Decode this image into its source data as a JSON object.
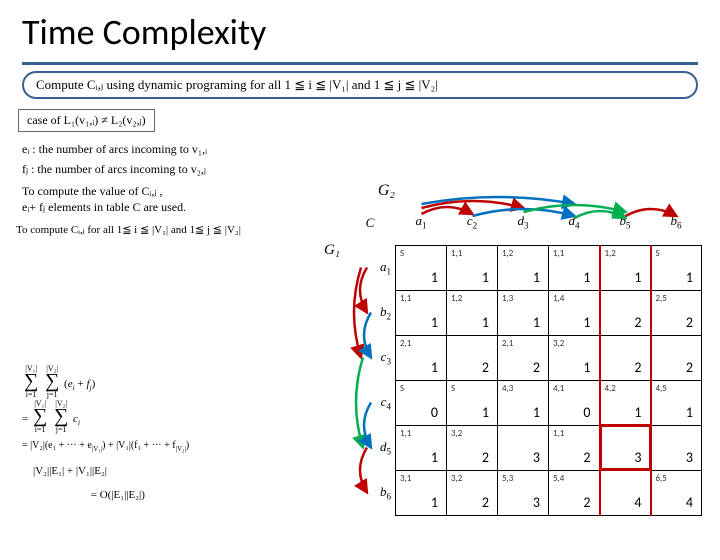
{
  "title": "Time Complexity",
  "callout": "Compute Cᵢ,ⱼ using dynamic programing for all 1 ≦ i ≦ |V₁| and 1 ≦ j ≦ |V₂|",
  "case_box": "case of L₁(v₁,ᵢ) ≠ L₂(v₂,ⱼ)",
  "def_ei": "eᵢ : the number of arcs incoming to v₁,ᵢ",
  "def_fj": "fⱼ : the number of arcs incoming to v₂,ⱼ",
  "note1_l1": "To compute the value of Cᵢ,ⱼ ,",
  "note1_l2": "eᵢ+ fⱼ elements in table C are used.",
  "note2": "To compute Cᵢ,ⱼ for all 1≦ i ≦ |V₁| and 1≦ j ≦ |V₂|",
  "final_eq": "= O(|E₁||E₂|)",
  "G2": "G₂",
  "G1": "G₁",
  "corner": "C",
  "cols": [
    {
      "label": "a",
      "idx": "1"
    },
    {
      "label": "c",
      "idx": "2"
    },
    {
      "label": "d",
      "idx": "3"
    },
    {
      "label": "d",
      "idx": "4"
    },
    {
      "label": "b",
      "idx": "5"
    },
    {
      "label": "b",
      "idx": "6"
    }
  ],
  "rows": [
    {
      "label": "a",
      "idx": "1"
    },
    {
      "label": "b",
      "idx": "2"
    },
    {
      "label": "c",
      "idx": "3"
    },
    {
      "label": "c",
      "idx": "4"
    },
    {
      "label": "d",
      "idx": "5"
    },
    {
      "label": "b",
      "idx": "6"
    }
  ],
  "cells": [
    [
      {
        "t": "S",
        "v": "1"
      },
      {
        "t": "1,1",
        "v": "1"
      },
      {
        "t": "1,2",
        "v": "1"
      },
      {
        "t": "1,1",
        "v": "1"
      },
      {
        "t": "1,2",
        "v": "1"
      },
      {
        "t": "S",
        "v": "1"
      }
    ],
    [
      {
        "t": "1,1",
        "v": "1"
      },
      {
        "t": "1,2",
        "v": "1"
      },
      {
        "t": "1,3",
        "v": "1"
      },
      {
        "t": "1,4",
        "v": "1"
      },
      {
        "t": "",
        "v": "2"
      },
      {
        "t": "2,5",
        "v": "2"
      }
    ],
    [
      {
        "t": "2,1",
        "v": "1"
      },
      {
        "t": "",
        "v": "2"
      },
      {
        "t": "2,1",
        "v": "2"
      },
      {
        "t": "3,2",
        "v": "1"
      },
      {
        "t": "",
        "v": "2"
      },
      {
        "t": "",
        "v": "2"
      }
    ],
    [
      {
        "t": "S",
        "v": "0"
      },
      {
        "t": "S",
        "v": "1"
      },
      {
        "t": "4,3",
        "v": "1"
      },
      {
        "t": "4,1",
        "v": "0"
      },
      {
        "t": "4,2",
        "v": "1"
      },
      {
        "t": "4,5",
        "v": "1"
      }
    ],
    [
      {
        "t": "1,1",
        "v": "1"
      },
      {
        "t": "3,2",
        "v": "2"
      },
      {
        "t": "",
        "v": "3"
      },
      {
        "t": "1,1",
        "v": "2"
      },
      {
        "t": "",
        "v": "3"
      },
      {
        "t": "",
        "v": "3"
      }
    ],
    [
      {
        "t": "3,1",
        "v": "1"
      },
      {
        "t": "3,2",
        "v": "2"
      },
      {
        "t": "5,3",
        "v": "3"
      },
      {
        "t": "5,4",
        "v": "2"
      },
      {
        "t": "",
        "v": "4"
      },
      {
        "t": "6,5",
        "v": "4"
      }
    ]
  ],
  "col_arcs": [
    {
      "from": 1,
      "to": 2,
      "color": "#c00000",
      "y": 2
    },
    {
      "from": 1,
      "to": 3,
      "color": "#c00000",
      "y": -4
    },
    {
      "from": 1,
      "to": 4,
      "color": "#0070c0",
      "y": -8
    },
    {
      "from": 2,
      "to": 4,
      "color": "#0070c0",
      "y": 4
    },
    {
      "from": 3,
      "to": 5,
      "color": "#00b050",
      "y": 0
    },
    {
      "from": 4,
      "to": 5,
      "color": "#00b050",
      "y": 6
    },
    {
      "from": 5,
      "to": 6,
      "color": "#c00000",
      "y": 4
    }
  ],
  "row_arcs": [
    {
      "from": 1,
      "to": 2,
      "color": "#c00000",
      "x": 2
    },
    {
      "from": 1,
      "to": 3,
      "color": "#c00000",
      "x": -4
    },
    {
      "from": 2,
      "to": 3,
      "color": "#0070c0",
      "x": 6
    },
    {
      "from": 3,
      "to": 5,
      "color": "#00b050",
      "x": -2
    },
    {
      "from": 4,
      "to": 5,
      "color": "#0070c0",
      "x": 6
    },
    {
      "from": 5,
      "to": 6,
      "color": "#c00000",
      "x": 2
    }
  ],
  "colors": {
    "accent": "#375f92",
    "red": "#c00000",
    "blue": "#0070c0",
    "green": "#00b050"
  },
  "highlight_cols": [
    5
  ],
  "highlight_rows": [],
  "highlight_cells": [
    [
      5,
      5
    ]
  ]
}
